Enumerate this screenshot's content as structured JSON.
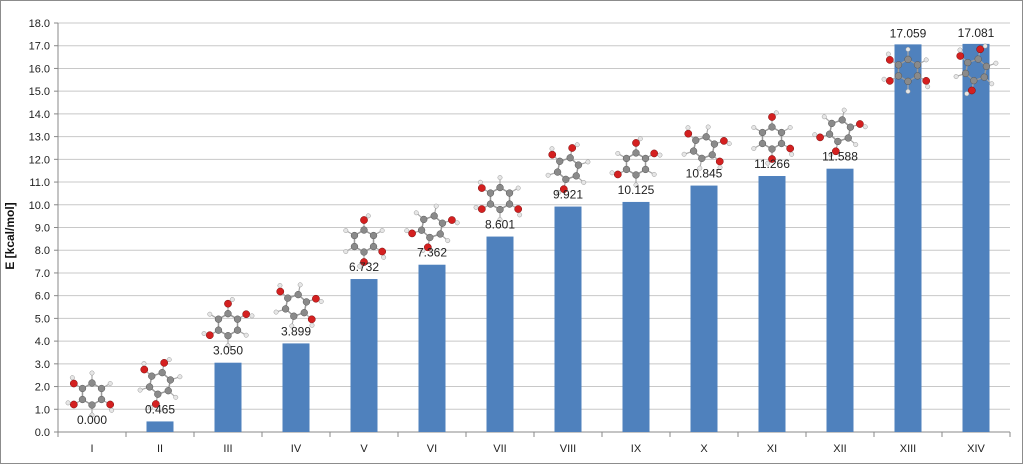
{
  "chart_data": {
    "type": "bar",
    "ylabel": "E [kcal/mol]",
    "ylim": [
      0,
      18
    ],
    "ytick_step": 1,
    "grid": true,
    "legend": "none",
    "bar_color": "#4f81bd",
    "categories": [
      "I",
      "II",
      "III",
      "IV",
      "V",
      "VI",
      "VII",
      "VIII",
      "IX",
      "X",
      "XI",
      "XII",
      "XIII",
      "XIV"
    ],
    "values": [
      0.0,
      0.465,
      3.05,
      3.899,
      6.732,
      7.362,
      8.601,
      9.921,
      10.125,
      10.845,
      11.266,
      11.588,
      17.059,
      17.081
    ],
    "data_labels": [
      "0.000",
      "0.465",
      "3.050",
      "3.899",
      "6.732",
      "7.362",
      "8.601",
      "9.921",
      "10.125",
      "10.845",
      "11.266",
      "11.588",
      "17.059",
      "17.081"
    ],
    "ytick_labels": [
      "0.0",
      "1.0",
      "2.0",
      "3.0",
      "4.0",
      "5.0",
      "6.0",
      "7.0",
      "8.0",
      "9.0",
      "10.0",
      "11.0",
      "12.0",
      "13.0",
      "14.0",
      "15.0",
      "16.0",
      "17.0",
      "18.0"
    ]
  },
  "colors": {
    "oxygen": "#d42020",
    "carbon": "#8a8a8a",
    "hydrogen": "#e6e6e6",
    "grid": "#c8c8c8"
  }
}
